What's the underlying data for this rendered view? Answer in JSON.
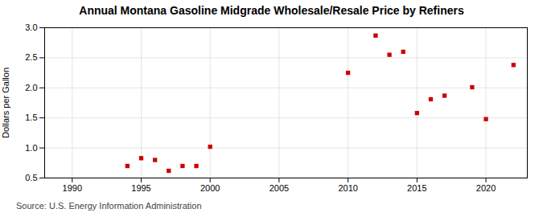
{
  "chart_data": {
    "type": "scatter",
    "title": "Annual Montana Gasoline Midgrade Wholesale/Resale Price by Refiners",
    "ylabel": "Dollars per Gallon",
    "annotations": [
      "Source: U.S. Energy Information Administration"
    ],
    "x": [
      1994,
      1995,
      1996,
      1997,
      1998,
      1999,
      2000,
      2010,
      2012,
      2013,
      2014,
      2015,
      2016,
      2017,
      2019,
      2020,
      2022
    ],
    "values": [
      0.7,
      0.83,
      0.8,
      0.62,
      0.7,
      0.7,
      1.02,
      2.25,
      2.87,
      2.55,
      2.6,
      1.58,
      1.81,
      1.87,
      2.01,
      1.48,
      2.38
    ],
    "color": "#cc0000",
    "marker": "square",
    "xlim": [
      1988,
      2023
    ],
    "ylim": [
      0.5,
      3.0
    ],
    "xticks": [
      1990,
      1995,
      2000,
      2005,
      2010,
      2015,
      2020
    ],
    "yticks": [
      0.5,
      {
        "value": 1.0,
        "label": "1.0"
      },
      1.5,
      {
        "value": 2.0,
        "label": "2.0"
      },
      2.5,
      {
        "value": 3.0,
        "label": "3.0"
      }
    ],
    "grid": true
  }
}
